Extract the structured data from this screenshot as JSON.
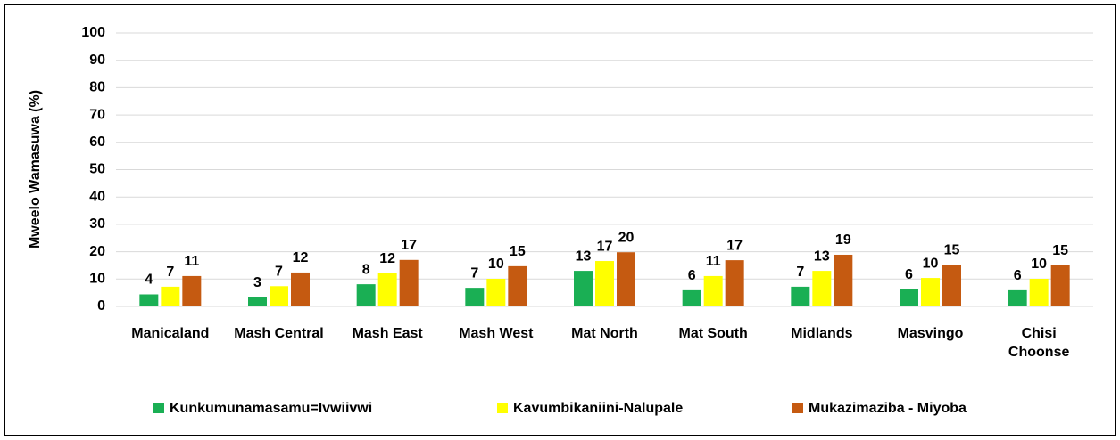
{
  "chart_data": {
    "type": "bar",
    "y_label": "Mweelo Wamasuwa (%)",
    "categories": [
      "Manicaland",
      "Mash Central",
      "Mash East",
      "Mash West",
      "Mat North",
      "Mat South",
      "Midlands",
      "Masvingo",
      "Chisi Choonse"
    ],
    "series": [
      {
        "name": "Kunkumunamasamu=Ivwiivwi",
        "color": "#1aaf54",
        "values": [
          4.4,
          3.3,
          8.1,
          6.8,
          13.0,
          5.9,
          7.2,
          6.2,
          5.9
        ],
        "value_labels": [
          "4",
          "3",
          "8",
          "7",
          "13",
          "6",
          "7",
          "6",
          "6"
        ]
      },
      {
        "name": "Kavumbikaniini-Nalupale",
        "color": "#ffff00",
        "values": [
          7.2,
          7.4,
          12.1,
          10.1,
          16.6,
          11.1,
          13.0,
          10.4,
          10.1
        ],
        "value_labels": [
          "7",
          "7",
          "12",
          "10",
          "17",
          "11",
          "13",
          "10",
          "10"
        ]
      },
      {
        "name": "Mukazimaziba - Miyoba",
        "color": "#c55a11",
        "values": [
          11.1,
          12.4,
          17.0,
          14.7,
          19.8,
          16.9,
          18.9,
          15.2,
          15.0
        ],
        "value_labels": [
          "11",
          "12",
          "17",
          "15",
          "20",
          "17",
          "19",
          "15",
          "15"
        ]
      }
    ],
    "ylim": [
      0,
      100
    ],
    "yticks": [
      0,
      10,
      20,
      30,
      40,
      50,
      60,
      70,
      80,
      90,
      100
    ],
    "grid": true,
    "legend": "bottom"
  }
}
